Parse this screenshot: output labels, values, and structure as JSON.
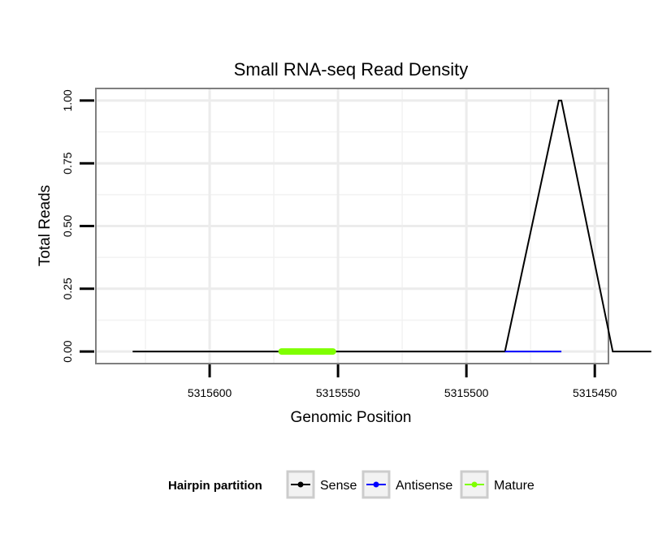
{
  "chart_data": {
    "type": "line",
    "title": "Small RNA-seq Read Density",
    "xlabel": "Genomic Position",
    "ylabel": "Total Reads",
    "xlim": [
      5315644,
      5315445
    ],
    "ylim": [
      -0.045,
      1.045
    ],
    "x_reversed": true,
    "x_ticks": [
      5315600,
      5315550,
      5315500,
      5315450
    ],
    "x_tick_labels": [
      "5315600",
      "5315550",
      "5315500",
      "5315450"
    ],
    "y_ticks": [
      0,
      0.25,
      0.5,
      0.75,
      1
    ],
    "y_tick_labels": [
      "0.00",
      "0.25",
      "0.50",
      "0.75",
      "1.00"
    ],
    "grid": true,
    "legend_position": "bottom",
    "legend_title": "Hairpin partition",
    "series": [
      {
        "name": "Sense",
        "color": "#000000",
        "x": [
          5315630,
          5315485,
          5315464,
          5315463,
          5315443,
          5315428
        ],
        "y": [
          0,
          0,
          1,
          1,
          0,
          0
        ]
      },
      {
        "name": "Antisense",
        "color": "#0000ff",
        "x": [
          5315485,
          5315463
        ],
        "y": [
          0,
          0
        ]
      },
      {
        "name": "Mature",
        "color": "#7fff00",
        "x": [
          5315572,
          5315552
        ],
        "y": [
          0,
          0
        ]
      }
    ]
  }
}
